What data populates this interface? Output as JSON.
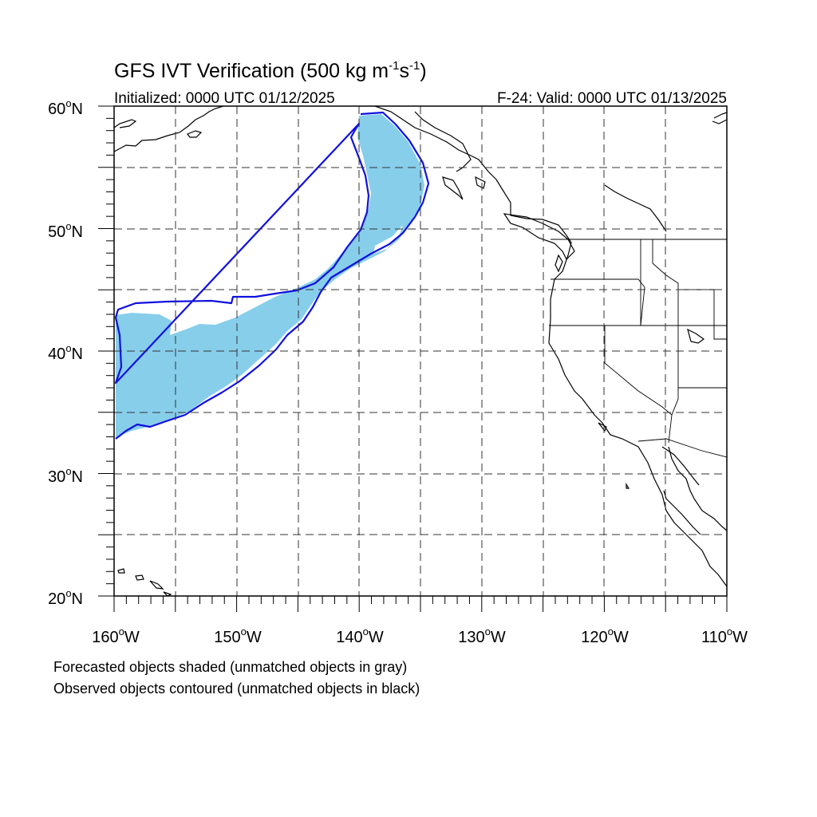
{
  "title": {
    "main": "GFS IVT Verification (500 kg m",
    "exp1": "-1",
    "mid": "s",
    "exp2": "-1",
    "end": ")"
  },
  "initialized": "Initialized: 0000 UTC 01/12/2025",
  "valid": "F-24: Valid: 0000 UTC 01/13/2025",
  "lat_labels": [
    {
      "num": "60",
      "deg": "o",
      "hemi": "N",
      "value": 60
    },
    {
      "num": "50",
      "deg": "o",
      "hemi": "N",
      "value": 50
    },
    {
      "num": "40",
      "deg": "o",
      "hemi": "N",
      "value": 40
    },
    {
      "num": "30",
      "deg": "o",
      "hemi": "N",
      "value": 30
    },
    {
      "num": "20",
      "deg": "o",
      "hemi": "N",
      "value": 20
    }
  ],
  "lon_labels": [
    {
      "num": "160",
      "deg": "o",
      "hemi": "W",
      "value": -160
    },
    {
      "num": "150",
      "deg": "o",
      "hemi": "W",
      "value": -150
    },
    {
      "num": "140",
      "deg": "o",
      "hemi": "W",
      "value": -140
    },
    {
      "num": "130",
      "deg": "o",
      "hemi": "W",
      "value": -130
    },
    {
      "num": "120",
      "deg": "o",
      "hemi": "W",
      "value": -120
    },
    {
      "num": "110",
      "deg": "o",
      "hemi": "W",
      "value": -110
    }
  ],
  "extent": {
    "lon_min": -160,
    "lon_max": -110,
    "lat_min": 20,
    "lat_max": 60
  },
  "gridline_spacing_deg": 5,
  "legend": {
    "forecast": "Forecasted objects shaded (unmatched objects in gray)",
    "observed": "Observed objects contoured (unmatched objects in black)"
  },
  "colors": {
    "forecast_fill": "#87ceeb",
    "observed_contour": "#1010e0",
    "coastline": "#000000",
    "grid": "#333333"
  }
}
